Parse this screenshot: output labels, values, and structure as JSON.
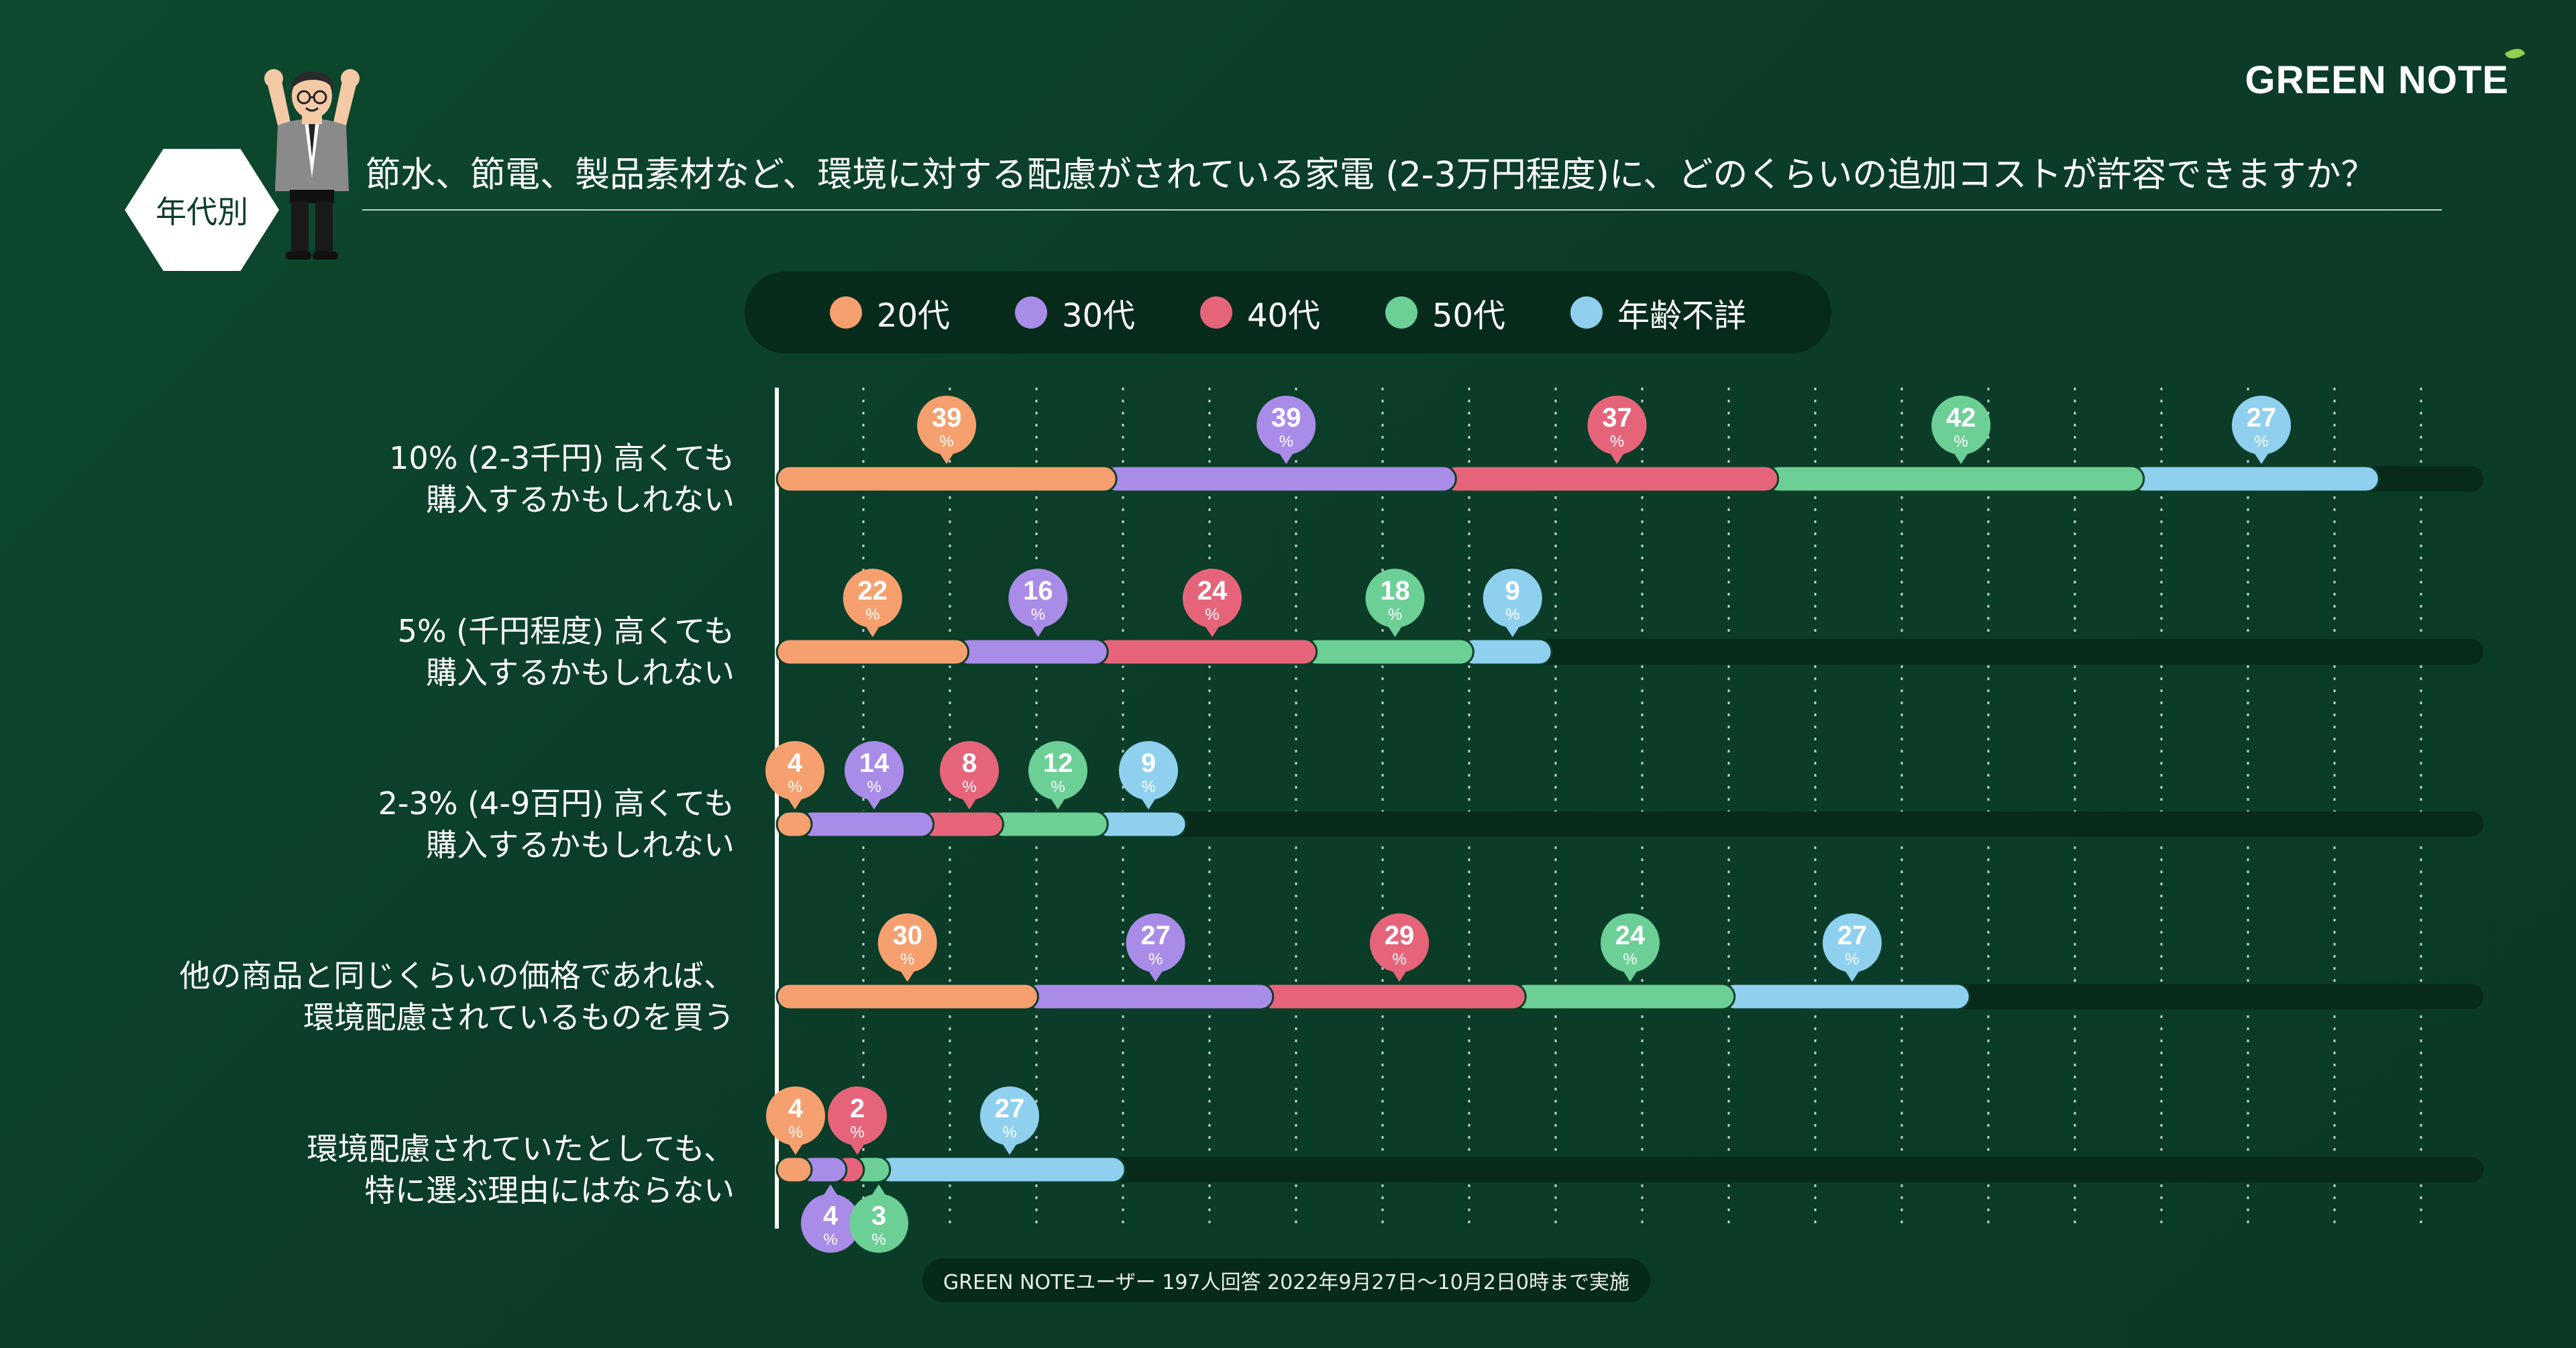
{
  "brand": "GREEN NOTE",
  "badge": "年代別",
  "title": "節水、節電、製品素材など、環境に対する配慮がされている家電 (2-3万円程度)に、どのくらいの追加コストが許容できますか？",
  "footnote": "GREEN NOTEユーザー 197人回答 2022年9月27日〜10月2日0時まで実施",
  "legend": [
    {
      "label": "20代",
      "color": "#f5a06e"
    },
    {
      "label": "30代",
      "color": "#a98be8"
    },
    {
      "label": "40代",
      "color": "#e6647a"
    },
    {
      "label": "50代",
      "color": "#6ccf96"
    },
    {
      "label": "年齢不詳",
      "color": "#8fd0ef"
    }
  ],
  "chart_data": {
    "type": "bar",
    "orientation": "horizontal",
    "stacked": true,
    "unit": "%",
    "categories": [
      "10% (2-3千円) 高くても\n購入するかもしれない",
      "5% (千円程度) 高くても\n購入するかもしれない",
      "2-3% (4-9百円) 高くても\n購入するかもしれない",
      "他の商品と同じくらいの価格であれば、\n環境配慮されているものを買う",
      "環境配慮されていたとしても、\n特に選ぶ理由にはならない"
    ],
    "series": [
      {
        "name": "20代",
        "color": "#f5a06e",
        "values": [
          39,
          22,
          4,
          30,
          4
        ]
      },
      {
        "name": "30代",
        "color": "#a98be8",
        "values": [
          39,
          16,
          14,
          27,
          4
        ]
      },
      {
        "name": "40代",
        "color": "#e6647a",
        "values": [
          37,
          24,
          8,
          29,
          2
        ]
      },
      {
        "name": "50代",
        "color": "#6ccf96",
        "values": [
          42,
          18,
          12,
          24,
          3
        ]
      },
      {
        "name": "年齢不詳",
        "color": "#8fd0ef",
        "values": [
          27,
          9,
          9,
          27,
          27
        ]
      }
    ],
    "track_color": "#082a1a",
    "grid": true,
    "xmax": 196
  }
}
